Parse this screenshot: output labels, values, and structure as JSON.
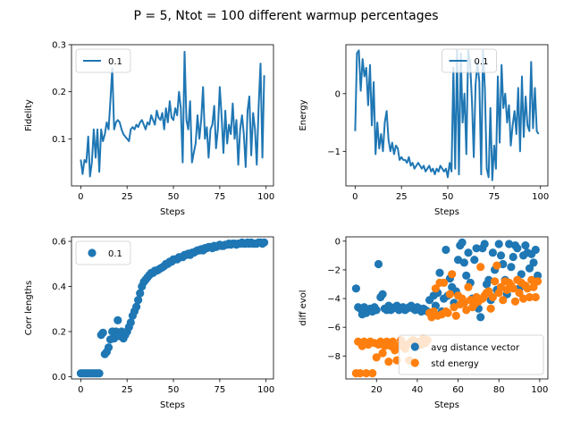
{
  "figure": {
    "suptitle": "P = 5, Ntot = 100 different warmup percentages"
  },
  "colors": {
    "blue": "#1f77b4",
    "orange": "#ff7f0e"
  },
  "chart_data": [
    {
      "type": "line",
      "xlabel": "Steps",
      "ylabel": "Fidelity",
      "xlim": [
        -5,
        104
      ],
      "ylim": [
        0,
        0.3
      ],
      "xticks": [
        0,
        25,
        50,
        75,
        100
      ],
      "yticks": [
        0.1,
        0.2,
        0.3
      ],
      "xtick_labels": [
        "0",
        "25",
        "50",
        "75",
        "100"
      ],
      "ytick_labels": [
        "0.1",
        "0.2",
        "0.3"
      ],
      "legend_loc": "upper-left",
      "series": [
        {
          "name": "0.1",
          "color": "#1f77b4",
          "x": [
            0,
            1,
            2,
            3,
            4,
            5,
            6,
            7,
            8,
            9,
            10,
            11,
            12,
            13,
            14,
            15,
            16,
            17,
            18,
            19,
            20,
            21,
            22,
            23,
            24,
            25,
            26,
            27,
            28,
            29,
            30,
            31,
            32,
            33,
            34,
            35,
            36,
            37,
            38,
            39,
            40,
            41,
            42,
            43,
            44,
            45,
            46,
            47,
            48,
            49,
            50,
            51,
            52,
            53,
            54,
            55,
            56,
            57,
            58,
            59,
            60,
            61,
            62,
            63,
            64,
            65,
            66,
            67,
            68,
            69,
            70,
            71,
            72,
            73,
            74,
            75,
            76,
            77,
            78,
            79,
            80,
            81,
            82,
            83,
            84,
            85,
            86,
            87,
            88,
            89,
            90,
            91,
            92,
            93,
            94,
            95,
            96,
            97,
            98,
            99
          ],
          "y": [
            0.056,
            0.025,
            0.055,
            0.05,
            0.105,
            0.02,
            0.05,
            0.12,
            0.06,
            0.12,
            0.03,
            0.12,
            0.095,
            0.11,
            0.135,
            0.12,
            0.18,
            0.25,
            0.12,
            0.135,
            0.14,
            0.135,
            0.12,
            0.11,
            0.105,
            0.1,
            0.095,
            0.12,
            0.125,
            0.12,
            0.13,
            0.125,
            0.135,
            0.14,
            0.13,
            0.12,
            0.135,
            0.13,
            0.15,
            0.14,
            0.13,
            0.16,
            0.145,
            0.14,
            0.155,
            0.12,
            0.165,
            0.135,
            0.18,
            0.145,
            0.14,
            0.165,
            0.15,
            0.2,
            0.165,
            0.05,
            0.285,
            0.14,
            0.12,
            0.18,
            0.05,
            0.07,
            0.09,
            0.15,
            0.1,
            0.14,
            0.21,
            0.1,
            0.125,
            0.06,
            0.12,
            0.13,
            0.17,
            0.08,
            0.12,
            0.21,
            0.15,
            0.07,
            0.16,
            0.09,
            0.13,
            0.11,
            0.175,
            0.1,
            0.14,
            0.045,
            0.12,
            0.15,
            0.11,
            0.04,
            0.16,
            0.19,
            0.065,
            0.155,
            0.12,
            0.045,
            0.17,
            0.26,
            0.06,
            0.235
          ]
        }
      ]
    },
    {
      "type": "line",
      "xlabel": "Steps",
      "ylabel": "Energy",
      "xlim": [
        -5,
        104
      ],
      "ylim": [
        -1.6,
        0.85
      ],
      "xticks": [
        0,
        25,
        50,
        75,
        100
      ],
      "yticks": [
        -1,
        0
      ],
      "xtick_labels": [
        "0",
        "25",
        "50",
        "75",
        "100"
      ],
      "ytick_labels": [
        "−1",
        "0"
      ],
      "legend_loc": "upper-center",
      "series": [
        {
          "name": "0.1",
          "color": "#1f77b4",
          "x": [
            0,
            1,
            2,
            3,
            4,
            5,
            6,
            7,
            8,
            9,
            10,
            11,
            12,
            13,
            14,
            15,
            16,
            17,
            18,
            19,
            20,
            21,
            22,
            23,
            24,
            25,
            26,
            27,
            28,
            29,
            30,
            31,
            32,
            33,
            34,
            35,
            36,
            37,
            38,
            39,
            40,
            41,
            42,
            43,
            44,
            45,
            46,
            47,
            48,
            49,
            50,
            51,
            52,
            53,
            54,
            55,
            56,
            57,
            58,
            59,
            60,
            61,
            62,
            63,
            64,
            65,
            66,
            67,
            68,
            69,
            70,
            71,
            72,
            73,
            74,
            75,
            76,
            77,
            78,
            79,
            80,
            81,
            82,
            83,
            84,
            85,
            86,
            87,
            88,
            89,
            90,
            91,
            92,
            93,
            94,
            95,
            96,
            97,
            98,
            99
          ],
          "y": [
            -0.65,
            0.7,
            0.75,
            0.05,
            0.6,
            0.3,
            0.45,
            -0.2,
            0.5,
            -0.55,
            0.2,
            -1.05,
            -0.5,
            -0.95,
            -0.7,
            -1.0,
            -0.5,
            -0.3,
            -0.8,
            -1.0,
            -0.85,
            -1.05,
            -0.9,
            -0.95,
            -1.15,
            -1.1,
            -1.15,
            -1.15,
            -1.2,
            -1.1,
            -1.25,
            -1.2,
            -1.3,
            -1.25,
            -1.2,
            -1.25,
            -1.3,
            -1.25,
            -1.35,
            -1.3,
            -1.25,
            -1.35,
            -1.3,
            -1.4,
            -1.3,
            -1.35,
            -1.25,
            -1.3,
            -1.35,
            -1.3,
            -1.45,
            -1.2,
            -1.35,
            0.45,
            -1.3,
            0.75,
            -1.4,
            0.7,
            -0.5,
            0.0,
            -1.05,
            0.75,
            0.55,
            -0.1,
            -1.1,
            0.15,
            0.55,
            0.2,
            -1.4,
            0.75,
            0.1,
            -1.3,
            -1.45,
            -0.25,
            -1.5,
            -0.9,
            -1.3,
            0.3,
            -0.85,
            0.5,
            -0.25,
            0.0,
            -0.5,
            -0.2,
            -0.9,
            -0.55,
            -0.3,
            -0.7,
            0.1,
            -1.0,
            0.3,
            -0.75,
            -0.05,
            -0.55,
            -0.65,
            0.55,
            -0.6,
            0.1,
            -0.65,
            -0.7
          ]
        }
      ]
    },
    {
      "type": "scatter",
      "xlabel": "Steps",
      "ylabel": "Corr lengths",
      "xlim": [
        -5,
        104
      ],
      "ylim": [
        -0.01,
        0.62
      ],
      "xticks": [
        0,
        25,
        50,
        75,
        100
      ],
      "yticks": [
        0.0,
        0.2,
        0.4,
        0.6
      ],
      "xtick_labels": [
        "0",
        "25",
        "50",
        "75",
        "100"
      ],
      "ytick_labels": [
        "0.0",
        "0.2",
        "0.4",
        "0.6"
      ],
      "legend_loc": "upper-left",
      "series": [
        {
          "name": "0.1",
          "color": "#1f77b4",
          "x": [
            0,
            1,
            2,
            3,
            4,
            5,
            6,
            7,
            8,
            9,
            10,
            11,
            12,
            13,
            14,
            15,
            16,
            17,
            18,
            19,
            20,
            21,
            22,
            23,
            24,
            25,
            26,
            27,
            28,
            29,
            30,
            31,
            32,
            33,
            34,
            35,
            36,
            37,
            38,
            39,
            40,
            41,
            42,
            43,
            44,
            45,
            46,
            47,
            48,
            49,
            50,
            51,
            52,
            53,
            54,
            55,
            56,
            57,
            58,
            59,
            60,
            61,
            62,
            63,
            64,
            65,
            66,
            67,
            68,
            69,
            70,
            71,
            72,
            73,
            74,
            75,
            76,
            77,
            78,
            79,
            80,
            81,
            82,
            83,
            84,
            85,
            86,
            87,
            88,
            89,
            90,
            91,
            92,
            93,
            94,
            95,
            96,
            97,
            98,
            99
          ],
          "y": [
            0.015,
            0.015,
            0.015,
            0.015,
            0.015,
            0.015,
            0.015,
            0.015,
            0.015,
            0.015,
            0.015,
            0.185,
            0.195,
            0.1,
            0.11,
            0.13,
            0.165,
            0.2,
            0.17,
            0.2,
            0.25,
            0.18,
            0.2,
            0.17,
            0.185,
            0.2,
            0.22,
            0.24,
            0.27,
            0.29,
            0.31,
            0.34,
            0.37,
            0.4,
            0.42,
            0.43,
            0.44,
            0.45,
            0.46,
            0.46,
            0.47,
            0.47,
            0.475,
            0.48,
            0.485,
            0.49,
            0.5,
            0.5,
            0.51,
            0.51,
            0.52,
            0.52,
            0.52,
            0.53,
            0.53,
            0.53,
            0.54,
            0.54,
            0.545,
            0.54,
            0.55,
            0.55,
            0.555,
            0.56,
            0.56,
            0.565,
            0.56,
            0.57,
            0.57,
            0.575,
            0.575,
            0.57,
            0.58,
            0.575,
            0.58,
            0.585,
            0.58,
            0.58,
            0.585,
            0.585,
            0.59,
            0.585,
            0.59,
            0.59,
            0.585,
            0.59,
            0.59,
            0.595,
            0.59,
            0.59,
            0.595,
            0.59,
            0.595,
            0.59,
            0.59,
            0.59,
            0.595,
            0.595,
            0.59,
            0.595
          ]
        }
      ]
    },
    {
      "type": "scatter",
      "xlabel": "Steps",
      "ylabel": "diff evol",
      "xlim": [
        5,
        104
      ],
      "ylim": [
        -9.6,
        0.3
      ],
      "xticks": [
        20,
        40,
        60,
        80,
        100
      ],
      "yticks": [
        -8,
        -6,
        -4,
        -2,
        0
      ],
      "xtick_labels": [
        "20",
        "40",
        "60",
        "80",
        "100"
      ],
      "ytick_labels": [
        "−8",
        "−6",
        "−4",
        "−2",
        "0"
      ],
      "legend_loc": "lower-right",
      "series": [
        {
          "name": "avg distance vector",
          "color": "#1f77b4",
          "x": [
            10,
            11,
            12,
            13,
            14,
            15,
            16,
            17,
            18,
            19,
            20,
            21,
            22,
            23,
            24,
            25,
            26,
            27,
            28,
            29,
            30,
            31,
            32,
            33,
            34,
            35,
            36,
            37,
            38,
            39,
            40,
            41,
            42,
            43,
            44,
            45,
            46,
            47,
            48,
            49,
            50,
            51,
            52,
            53,
            54,
            55,
            56,
            57,
            58,
            59,
            60,
            61,
            62,
            63,
            64,
            65,
            66,
            67,
            68,
            69,
            70,
            71,
            72,
            73,
            74,
            75,
            76,
            77,
            78,
            79,
            80,
            81,
            82,
            83,
            84,
            85,
            86,
            87,
            88,
            89,
            90,
            91,
            92,
            93,
            94,
            95,
            96,
            97,
            98,
            99
          ],
          "y": [
            -3.3,
            -4.6,
            -4.7,
            -5.1,
            -4.6,
            -5.0,
            -4.8,
            -4.7,
            -4.9,
            -4.6,
            -4.8,
            -1.6,
            -3.9,
            -3.7,
            -4.7,
            -4.8,
            -4.5,
            -4.8,
            -4.7,
            -4.6,
            -4.5,
            -4.8,
            -4.7,
            -4.6,
            -4.8,
            -4.7,
            -4.6,
            -4.5,
            -4.7,
            -4.8,
            -4.6,
            -4.7,
            -4.9,
            -4.7,
            -4.8,
            -4.9,
            -4.1,
            -5.0,
            -3.8,
            -4.5,
            -3.6,
            -2.2,
            -4.9,
            -4.0,
            -0.6,
            -3.8,
            -2.6,
            -3.2,
            -4.3,
            -3.5,
            -1.3,
            -0.3,
            -0.1,
            -1.5,
            -2.4,
            -0.8,
            -2.9,
            -4.0,
            -1.3,
            -0.5,
            -4.7,
            -5.3,
            -0.5,
            -0.2,
            -3.0,
            -2.7,
            -4.1,
            -0.8,
            -2.0,
            -3.4,
            -0.2,
            -1.0,
            -1.6,
            -2.7,
            -3.7,
            -0.2,
            -1.8,
            -1.1,
            -0.3,
            -0.5,
            -3.3,
            -2.3,
            -1.0,
            -0.3,
            -0.8,
            -1.9,
            -0.9,
            -1.5,
            -0.6,
            -2.4
          ]
        },
        {
          "name": "std energy",
          "color": "#ff7f0e",
          "x": [
            10,
            11,
            12,
            13,
            14,
            15,
            16,
            17,
            18,
            19,
            20,
            21,
            22,
            23,
            24,
            25,
            26,
            27,
            28,
            29,
            30,
            31,
            32,
            33,
            34,
            35,
            36,
            37,
            38,
            39,
            40,
            41,
            42,
            43,
            44,
            45,
            46,
            47,
            48,
            49,
            50,
            51,
            52,
            53,
            54,
            55,
            56,
            57,
            58,
            59,
            60,
            61,
            62,
            63,
            64,
            65,
            66,
            67,
            68,
            69,
            70,
            71,
            72,
            73,
            74,
            75,
            76,
            77,
            78,
            79,
            80,
            81,
            82,
            83,
            84,
            85,
            86,
            87,
            88,
            89,
            90,
            91,
            92,
            93,
            94,
            95,
            96,
            97,
            98,
            99
          ],
          "y": [
            -9.2,
            -7.0,
            -9.2,
            -7.3,
            -7.0,
            -9.2,
            -7.2,
            -7.0,
            -9.2,
            -7.1,
            -8.1,
            -7.2,
            -7.0,
            -7.8,
            -7.3,
            -7.0,
            -8.4,
            -7.3,
            -7.0,
            -7.6,
            -8.3,
            -7.3,
            -6.9,
            -7.3,
            -7.5,
            -7.2,
            -8.3,
            -7.0,
            -6.9,
            -7.1,
            -7.3,
            -7.0,
            -7.2,
            -6.8,
            -7.1,
            -6.9,
            -5.0,
            -5.3,
            -4.9,
            -3.3,
            -5.2,
            -2.9,
            -5.1,
            -2.9,
            -4.9,
            -5.0,
            -3.7,
            -2.3,
            -4.6,
            -5.2,
            -3.8,
            -4.4,
            -4.0,
            -4.3,
            -4.8,
            -3.2,
            -4.1,
            -4.6,
            -4.4,
            -3.9,
            -4.2,
            -1.8,
            -4.0,
            -3.8,
            -3.6,
            -3.5,
            -4.7,
            -3.9,
            -2.8,
            -1.7,
            -3.6,
            -3.2,
            -4.1,
            -2.8,
            -3.4,
            -2.9,
            -3.1,
            -3.3,
            -4.2,
            -2.7,
            -3.6,
            -2.9,
            -4.0,
            -3.1,
            -3.3,
            -3.9,
            -2.7,
            -3.2,
            -3.9,
            -2.8
          ]
        }
      ]
    }
  ]
}
